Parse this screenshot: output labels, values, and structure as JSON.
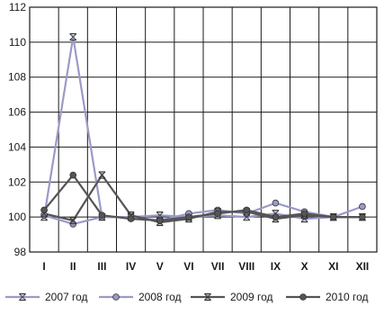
{
  "chart_data": {
    "type": "line",
    "title": "",
    "xlabel": "",
    "ylabel": "",
    "categories": [
      "I",
      "II",
      "III",
      "IV",
      "V",
      "VI",
      "VII",
      "VIII",
      "IX",
      "X",
      "XI",
      "XII"
    ],
    "ylim": [
      98,
      112
    ],
    "yticks": [
      98,
      100,
      102,
      104,
      106,
      108,
      110,
      112
    ],
    "grid": true,
    "legend_position": "bottom",
    "series": [
      {
        "name": "2007 год",
        "color": "#9a9ac8",
        "marker": "star-x",
        "values": [
          100.0,
          110.3,
          100.0,
          100.0,
          100.1,
          100.0,
          100.1,
          100.0,
          100.2,
          99.9,
          100.0,
          100.0
        ]
      },
      {
        "name": "2008 год",
        "color": "#9a9ac8",
        "marker": "circle",
        "values": [
          100.1,
          99.6,
          100.0,
          100.0,
          99.8,
          100.2,
          100.4,
          100.2,
          100.8,
          100.3,
          100.0,
          100.6
        ]
      },
      {
        "name": "2009 год",
        "color": "#555555",
        "marker": "star-x",
        "values": [
          100.2,
          99.8,
          102.4,
          100.1,
          99.7,
          99.9,
          100.3,
          100.3,
          99.9,
          100.1,
          100.0,
          100.0
        ]
      },
      {
        "name": "2010 год",
        "color": "#555555",
        "marker": "circle",
        "values": [
          100.4,
          102.4,
          100.1,
          99.9,
          99.8,
          100.0,
          100.2,
          100.4,
          100.0,
          100.2,
          100.0,
          100.0
        ]
      }
    ]
  }
}
